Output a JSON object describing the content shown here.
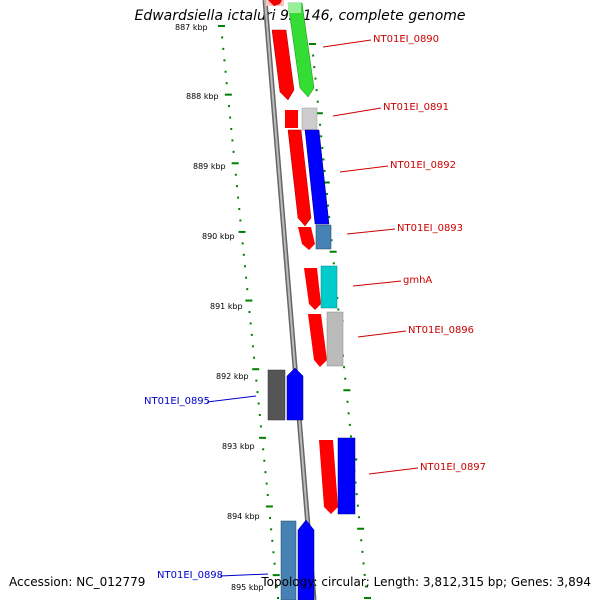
{
  "title": "Edwardsiella ictaluri 93-146, complete genome",
  "footer": {
    "accession": "Accession: NC_012779",
    "stats": "Topology: circular; Length: 3,812,315 bp; Genes: 3,894"
  },
  "ticks": [
    {
      "label": "887 kbp",
      "partial": true
    },
    {
      "label": "888 kbp"
    },
    {
      "label": "889 kbp"
    },
    {
      "label": "890 kbp"
    },
    {
      "label": "891 kbp"
    },
    {
      "label": "892 kbp"
    },
    {
      "label": "893 kbp"
    },
    {
      "label": "894 kbp"
    },
    {
      "label": "895 kbp"
    }
  ],
  "gene_labels": [
    {
      "text": "NT01EI_0890",
      "color": "#cc0000"
    },
    {
      "text": "NT01EI_0891",
      "color": "#cc0000"
    },
    {
      "text": "NT01EI_0892",
      "color": "#cc0000"
    },
    {
      "text": "NT01EI_0893",
      "color": "#cc0000"
    },
    {
      "text": "gmhA",
      "color": "#cc0000"
    },
    {
      "text": "NT01EI_0896",
      "color": "#cc0000"
    },
    {
      "text": "NT01EI_0895",
      "color": "#0000cc"
    },
    {
      "text": "NT01EI_0897",
      "color": "#cc0000"
    },
    {
      "text": "NT01EI_0898",
      "color": "#0000cc"
    }
  ],
  "colors": {
    "strand_line": "#888888",
    "tick_green": "#008000",
    "red_track": "#ff0000",
    "green": "#33cc33",
    "blue": "#0000ff",
    "steelblue": "#4682b4",
    "cyan": "#00cccc",
    "gray": "#bbbbbb",
    "darkgray": "#555555",
    "pink": "#ffb6b6"
  }
}
